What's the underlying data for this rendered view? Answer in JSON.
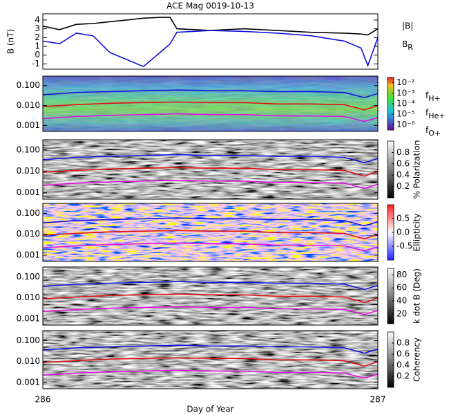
{
  "chart_data": [
    {
      "type": "line",
      "title": "ACE Mag 0019-10-13",
      "ylabel": "B (nT)",
      "xlim": [
        286,
        287
      ],
      "ylim": [
        -1.6,
        4.7
      ],
      "yticks": [
        -1,
        0,
        1,
        2,
        3,
        4
      ],
      "log_y": false,
      "x": [
        286.0,
        286.05,
        286.1,
        286.15,
        286.2,
        286.25,
        286.3,
        286.35,
        286.38,
        286.4,
        286.5,
        286.6,
        286.7,
        286.8,
        286.9,
        286.95,
        286.97,
        287.0
      ],
      "series": [
        {
          "name": "|B|",
          "color": "#000000",
          "values": [
            3.3,
            2.9,
            3.5,
            3.6,
            3.8,
            4.0,
            4.2,
            4.3,
            4.3,
            3.0,
            2.8,
            3.0,
            2.8,
            2.6,
            2.5,
            2.4,
            2.3,
            3.0
          ]
        },
        {
          "name": "BR",
          "color": "#1010e0",
          "values": [
            1.6,
            1.3,
            2.5,
            2.2,
            0.3,
            -0.5,
            -1.3,
            0.3,
            1.3,
            2.6,
            2.8,
            2.7,
            2.5,
            2.2,
            1.6,
            0.8,
            -1.2,
            2.0
          ]
        }
      ]
    },
    {
      "type": "spectrogram",
      "xlim": [
        286,
        287
      ],
      "ylim": [
        0.0005,
        0.3
      ],
      "log_y": true,
      "yticks": [
        0.001,
        {
          "value": 0.01,
          "label": "0.010"
        },
        {
          "value": 0.1,
          "label": "0.100"
        }
      ],
      "x": [
        286.0,
        286.1,
        286.2,
        286.3,
        286.4,
        286.5,
        286.6,
        286.7,
        286.8,
        286.9,
        286.96,
        287.0
      ],
      "series": [
        {
          "name": "fH+",
          "color": "#1010e0",
          "values": [
            0.035,
            0.045,
            0.05,
            0.055,
            0.06,
            0.055,
            0.055,
            0.05,
            0.05,
            0.045,
            0.025,
            0.04
          ]
        },
        {
          "name": "fHe+",
          "color": "#e01010",
          "values": [
            0.009,
            0.011,
            0.013,
            0.014,
            0.015,
            0.014,
            0.014,
            0.012,
            0.012,
            0.011,
            0.006,
            0.01
          ]
        },
        {
          "name": "fO+",
          "color": "#e010e0",
          "values": [
            0.0022,
            0.0028,
            0.0032,
            0.0035,
            0.0038,
            0.0035,
            0.0035,
            0.003,
            0.003,
            0.0028,
            0.0016,
            0.0025
          ]
        }
      ],
      "colorbar": {
        "colormap": "rainbow",
        "lim": [
          -6.5,
          -1.5
        ],
        "ticks": [
          {
            "value": -2,
            "label": "10⁻²"
          },
          {
            "value": -3,
            "label": "10⁻³"
          },
          {
            "value": -4,
            "label": "10⁻⁴"
          },
          {
            "value": -5,
            "label": "10⁻⁵"
          },
          {
            "value": -6,
            "label": "10⁻⁶"
          }
        ]
      }
    },
    {
      "type": "spectrogram",
      "xlim": [
        286,
        287
      ],
      "ylim": [
        0.0005,
        0.3
      ],
      "log_y": true,
      "yticks": [
        0.001,
        {
          "value": 0.01,
          "label": "0.010"
        },
        {
          "value": 0.1,
          "label": "0.100"
        }
      ],
      "x": [
        286.0,
        286.1,
        286.2,
        286.3,
        286.4,
        286.5,
        286.6,
        286.7,
        286.8,
        286.9,
        286.96,
        287.0
      ],
      "series": [
        {
          "color": "#1010e0",
          "values": [
            0.035,
            0.045,
            0.05,
            0.055,
            0.06,
            0.055,
            0.055,
            0.05,
            0.05,
            0.045,
            0.025,
            0.04
          ]
        },
        {
          "color": "#e01010",
          "values": [
            0.009,
            0.011,
            0.013,
            0.014,
            0.015,
            0.014,
            0.014,
            0.012,
            0.012,
            0.011,
            0.006,
            0.01
          ]
        },
        {
          "color": "#e010e0",
          "values": [
            0.0022,
            0.0028,
            0.0032,
            0.0035,
            0.0038,
            0.0035,
            0.0035,
            0.003,
            0.003,
            0.0028,
            0.0016,
            0.0025
          ]
        }
      ],
      "colorbar": {
        "colormap": "gray",
        "label": "% Polarization",
        "lim": [
          0,
          1
        ],
        "ticks": [
          0.2,
          0.4,
          0.6,
          0.8
        ]
      }
    },
    {
      "type": "spectrogram",
      "xlim": [
        286,
        287
      ],
      "ylim": [
        0.0005,
        0.3
      ],
      "log_y": true,
      "yticks": [
        0.001,
        {
          "value": 0.01,
          "label": "0.010"
        },
        {
          "value": 0.1,
          "label": "0.100"
        }
      ],
      "x": [
        286.0,
        286.1,
        286.2,
        286.3,
        286.4,
        286.5,
        286.6,
        286.7,
        286.8,
        286.9,
        286.96,
        287.0
      ],
      "series": [
        {
          "color": "#1010e0",
          "values": [
            0.035,
            0.045,
            0.05,
            0.055,
            0.06,
            0.055,
            0.055,
            0.05,
            0.05,
            0.045,
            0.025,
            0.04
          ]
        },
        {
          "color": "#e01010",
          "values": [
            0.009,
            0.011,
            0.013,
            0.014,
            0.015,
            0.014,
            0.014,
            0.012,
            0.012,
            0.011,
            0.006,
            0.01
          ]
        },
        {
          "color": "#e010e0",
          "values": [
            0.0022,
            0.0028,
            0.0032,
            0.0035,
            0.0038,
            0.0035,
            0.0035,
            0.003,
            0.003,
            0.0028,
            0.0016,
            0.0025
          ]
        }
      ],
      "colorbar": {
        "colormap": "bwr",
        "label": "Ellipticity",
        "lim": [
          -1,
          1
        ],
        "ticks": [
          -0.5,
          {
            "value": 0,
            "label": "0.0"
          },
          0.5
        ]
      }
    },
    {
      "type": "spectrogram",
      "xlim": [
        286,
        287
      ],
      "ylim": [
        0.0005,
        0.3
      ],
      "log_y": true,
      "yticks": [
        0.001,
        {
          "value": 0.01,
          "label": "0.010"
        },
        {
          "value": 0.1,
          "label": "0.100"
        }
      ],
      "x": [
        286.0,
        286.1,
        286.2,
        286.3,
        286.4,
        286.5,
        286.6,
        286.7,
        286.8,
        286.9,
        286.96,
        287.0
      ],
      "series": [
        {
          "color": "#1010e0",
          "values": [
            0.035,
            0.045,
            0.05,
            0.055,
            0.06,
            0.055,
            0.055,
            0.05,
            0.05,
            0.045,
            0.025,
            0.04
          ]
        },
        {
          "color": "#e01010",
          "values": [
            0.009,
            0.011,
            0.013,
            0.014,
            0.015,
            0.014,
            0.014,
            0.012,
            0.012,
            0.011,
            0.006,
            0.01
          ]
        },
        {
          "color": "#e010e0",
          "values": [
            0.0022,
            0.0028,
            0.0032,
            0.0035,
            0.0038,
            0.0035,
            0.0035,
            0.003,
            0.003,
            0.0028,
            0.0016,
            0.0025
          ]
        }
      ],
      "colorbar": {
        "colormap": "gray",
        "label": "k dot B (Deg)",
        "lim": [
          5,
          90
        ],
        "ticks": [
          20,
          40,
          60,
          80
        ]
      }
    },
    {
      "type": "spectrogram",
      "xlim": [
        286,
        287
      ],
      "xticks": [
        286,
        287
      ],
      "xlabel": "Day of Year",
      "ylim": [
        0.0005,
        0.3
      ],
      "log_y": true,
      "yticks": [
        0.001,
        {
          "value": 0.01,
          "label": "0.010"
        },
        {
          "value": 0.1,
          "label": "0.100"
        }
      ],
      "x": [
        286.0,
        286.1,
        286.2,
        286.3,
        286.4,
        286.5,
        286.6,
        286.7,
        286.8,
        286.9,
        286.96,
        287.0
      ],
      "series": [
        {
          "color": "#1010e0",
          "values": [
            0.035,
            0.045,
            0.05,
            0.055,
            0.06,
            0.055,
            0.055,
            0.05,
            0.05,
            0.045,
            0.025,
            0.04
          ]
        },
        {
          "color": "#e01010",
          "values": [
            0.009,
            0.011,
            0.013,
            0.014,
            0.015,
            0.014,
            0.014,
            0.012,
            0.012,
            0.011,
            0.006,
            0.01
          ]
        },
        {
          "color": "#e010e0",
          "values": [
            0.0022,
            0.0028,
            0.0032,
            0.0035,
            0.0038,
            0.0035,
            0.0035,
            0.003,
            0.003,
            0.0028,
            0.0016,
            0.0025
          ]
        }
      ],
      "colorbar": {
        "colormap": "gray",
        "label": "Coherency",
        "lim": [
          0,
          1
        ],
        "ticks": [
          0.2,
          0.4,
          0.6,
          0.8
        ]
      }
    }
  ]
}
